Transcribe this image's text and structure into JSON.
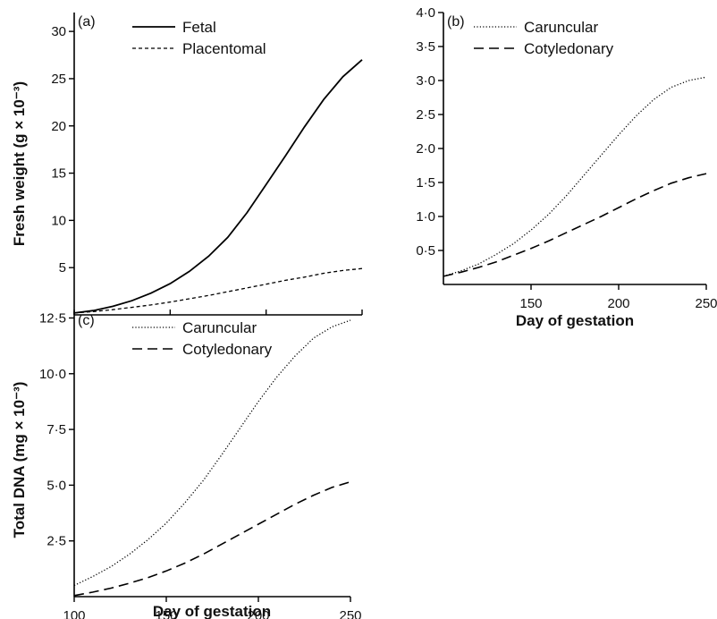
{
  "chart_data": [
    {
      "type": "line",
      "panel_label": "(a)",
      "xlabel": "",
      "ylabel": "Fresh weight (g × 10⁻³)",
      "xlim": [
        100,
        250
      ],
      "ylim": [
        0,
        32
      ],
      "xticks": [
        100,
        150,
        200,
        250
      ],
      "xtick_labels": [
        "",
        "",
        "",
        ""
      ],
      "yticks": [
        5,
        10,
        15,
        20,
        25,
        30
      ],
      "ytick_labels": [
        "5",
        "10",
        "15",
        "20",
        "25",
        "30"
      ],
      "legend_position": "top-left",
      "series": [
        {
          "name": "Fetal",
          "style": "solid",
          "x": [
            100,
            110,
            120,
            130,
            140,
            150,
            160,
            170,
            180,
            190,
            200,
            210,
            220,
            230,
            240,
            250
          ],
          "y": [
            0.2,
            0.45,
            0.9,
            1.5,
            2.3,
            3.3,
            4.6,
            6.2,
            8.2,
            10.8,
            13.8,
            16.8,
            19.9,
            22.8,
            25.2,
            27.0
          ]
        },
        {
          "name": "Placentomal",
          "style": "dashed-fine",
          "x": [
            100,
            110,
            120,
            130,
            140,
            150,
            160,
            170,
            180,
            190,
            200,
            210,
            220,
            230,
            240,
            250
          ],
          "y": [
            0.2,
            0.35,
            0.55,
            0.8,
            1.05,
            1.35,
            1.7,
            2.05,
            2.45,
            2.85,
            3.25,
            3.65,
            4.0,
            4.4,
            4.7,
            4.9
          ]
        }
      ]
    },
    {
      "type": "line",
      "panel_label": "(b)",
      "xlabel": "Day of gestation",
      "ylabel": "",
      "xlim": [
        100,
        250
      ],
      "ylim": [
        0,
        4.0
      ],
      "xticks": [
        150,
        200,
        250
      ],
      "xtick_labels": [
        "150",
        "200",
        "250"
      ],
      "yticks": [
        0.5,
        1.0,
        1.5,
        2.0,
        2.5,
        3.0,
        3.5,
        4.0
      ],
      "ytick_labels": [
        "0·5",
        "1·0",
        "1·5",
        "2·0",
        "2·5",
        "3·0",
        "3·5",
        "4·0"
      ],
      "legend_position": "top-left",
      "series": [
        {
          "name": "Caruncular",
          "style": "dotted",
          "x": [
            100,
            110,
            120,
            130,
            140,
            150,
            160,
            170,
            180,
            190,
            200,
            210,
            220,
            230,
            240,
            250
          ],
          "y": [
            0.12,
            0.2,
            0.3,
            0.44,
            0.6,
            0.8,
            1.03,
            1.3,
            1.6,
            1.9,
            2.2,
            2.48,
            2.72,
            2.9,
            3.0,
            3.05
          ]
        },
        {
          "name": "Cotyledonary",
          "style": "long-dash",
          "x": [
            100,
            110,
            120,
            130,
            140,
            150,
            160,
            170,
            180,
            190,
            200,
            210,
            220,
            230,
            240,
            250
          ],
          "y": [
            0.12,
            0.18,
            0.25,
            0.33,
            0.43,
            0.53,
            0.64,
            0.76,
            0.88,
            1.0,
            1.13,
            1.26,
            1.38,
            1.49,
            1.57,
            1.63
          ]
        }
      ]
    },
    {
      "type": "line",
      "panel_label": "(c)",
      "xlabel": "Day of gestation",
      "ylabel": "Total DNA (mg × 10⁻³)",
      "xlim": [
        100,
        250
      ],
      "ylim": [
        0,
        12.8
      ],
      "xticks": [
        100,
        150,
        200,
        250
      ],
      "xtick_labels": [
        "100",
        "150",
        "200",
        "250"
      ],
      "yticks": [
        2.5,
        5.0,
        7.5,
        10.0,
        12.5
      ],
      "ytick_labels": [
        "2·5",
        "5·0",
        "7·5",
        "10·0",
        "12·5"
      ],
      "legend_position": "top-left",
      "series": [
        {
          "name": "Caruncular",
          "style": "dotted",
          "x": [
            100,
            110,
            120,
            130,
            140,
            150,
            160,
            170,
            180,
            190,
            200,
            210,
            220,
            230,
            240,
            250
          ],
          "y": [
            0.5,
            0.9,
            1.35,
            1.9,
            2.55,
            3.3,
            4.2,
            5.2,
            6.35,
            7.55,
            8.75,
            9.85,
            10.8,
            11.6,
            12.1,
            12.4
          ]
        },
        {
          "name": "Cotyledonary",
          "style": "long-dash",
          "x": [
            100,
            110,
            120,
            130,
            140,
            150,
            160,
            170,
            180,
            190,
            200,
            210,
            220,
            230,
            240,
            250
          ],
          "y": [
            0.05,
            0.2,
            0.38,
            0.6,
            0.85,
            1.15,
            1.5,
            1.9,
            2.35,
            2.8,
            3.25,
            3.7,
            4.15,
            4.55,
            4.9,
            5.15
          ]
        }
      ]
    }
  ]
}
